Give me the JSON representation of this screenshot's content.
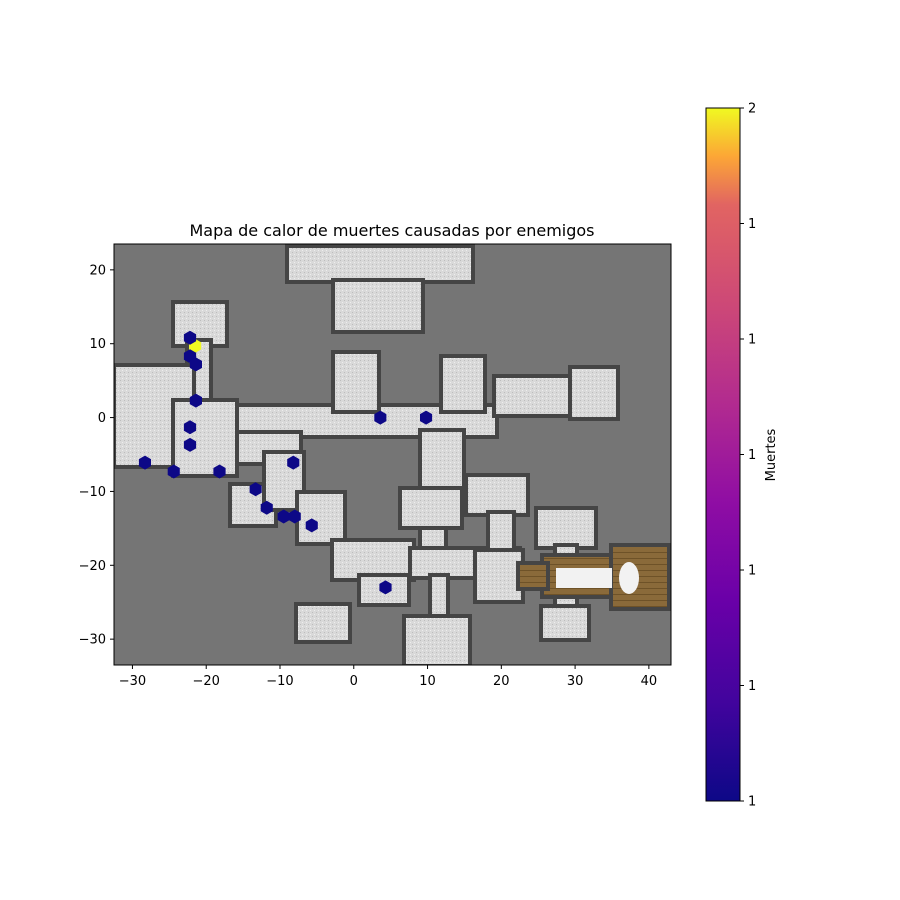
{
  "chart_data": {
    "type": "scatter",
    "subtype": "hexbin-heatmap-over-map",
    "title": "Mapa de calor de muertes causadas por enemigos",
    "xlabel": "",
    "ylabel": "",
    "xlim": [
      -32.5,
      43
    ],
    "ylim": [
      -33.5,
      23.5
    ],
    "x_ticks": [
      -30,
      -20,
      -10,
      0,
      10,
      20,
      30,
      40
    ],
    "y_ticks": [
      -30,
      -20,
      -10,
      0,
      10,
      20
    ],
    "grid": false,
    "background_image": "top-down dungeon level map",
    "points": [
      {
        "x": -21.5,
        "y": 9.7,
        "value": 2
      },
      {
        "x": -22.2,
        "y": 10.8,
        "value": 1
      },
      {
        "x": -22.2,
        "y": 8.3,
        "value": 1
      },
      {
        "x": -21.4,
        "y": 7.2,
        "value": 1
      },
      {
        "x": -21.4,
        "y": 2.3,
        "value": 1
      },
      {
        "x": -22.2,
        "y": -1.3,
        "value": 1
      },
      {
        "x": -22.2,
        "y": -3.7,
        "value": 1
      },
      {
        "x": -28.3,
        "y": -6.1,
        "value": 1
      },
      {
        "x": -24.4,
        "y": -7.3,
        "value": 1
      },
      {
        "x": -18.2,
        "y": -7.3,
        "value": 1
      },
      {
        "x": -8.2,
        "y": -6.1,
        "value": 1
      },
      {
        "x": -13.3,
        "y": -9.7,
        "value": 1
      },
      {
        "x": -11.8,
        "y": -12.2,
        "value": 1
      },
      {
        "x": -9.5,
        "y": -13.4,
        "value": 1
      },
      {
        "x": -8.0,
        "y": -13.4,
        "value": 1
      },
      {
        "x": -5.7,
        "y": -14.6,
        "value": 1
      },
      {
        "x": 3.6,
        "y": 0.0,
        "value": 1
      },
      {
        "x": 9.8,
        "y": 0.0,
        "value": 1
      },
      {
        "x": 4.3,
        "y": -23.0,
        "value": 1
      }
    ],
    "colorbar": {
      "label": "Muertes",
      "colormap": "plasma",
      "range": [
        1,
        2
      ],
      "tick_labels": [
        "1",
        "1",
        "1",
        "1",
        "1",
        "1",
        "2"
      ]
    }
  },
  "colors": {
    "map_background": "#757575",
    "room_floor": "#d6d6d6",
    "room_border": "#454545",
    "wood_floor": "#8a6a3a",
    "low": "#0d0887",
    "high": "#f0f921"
  }
}
